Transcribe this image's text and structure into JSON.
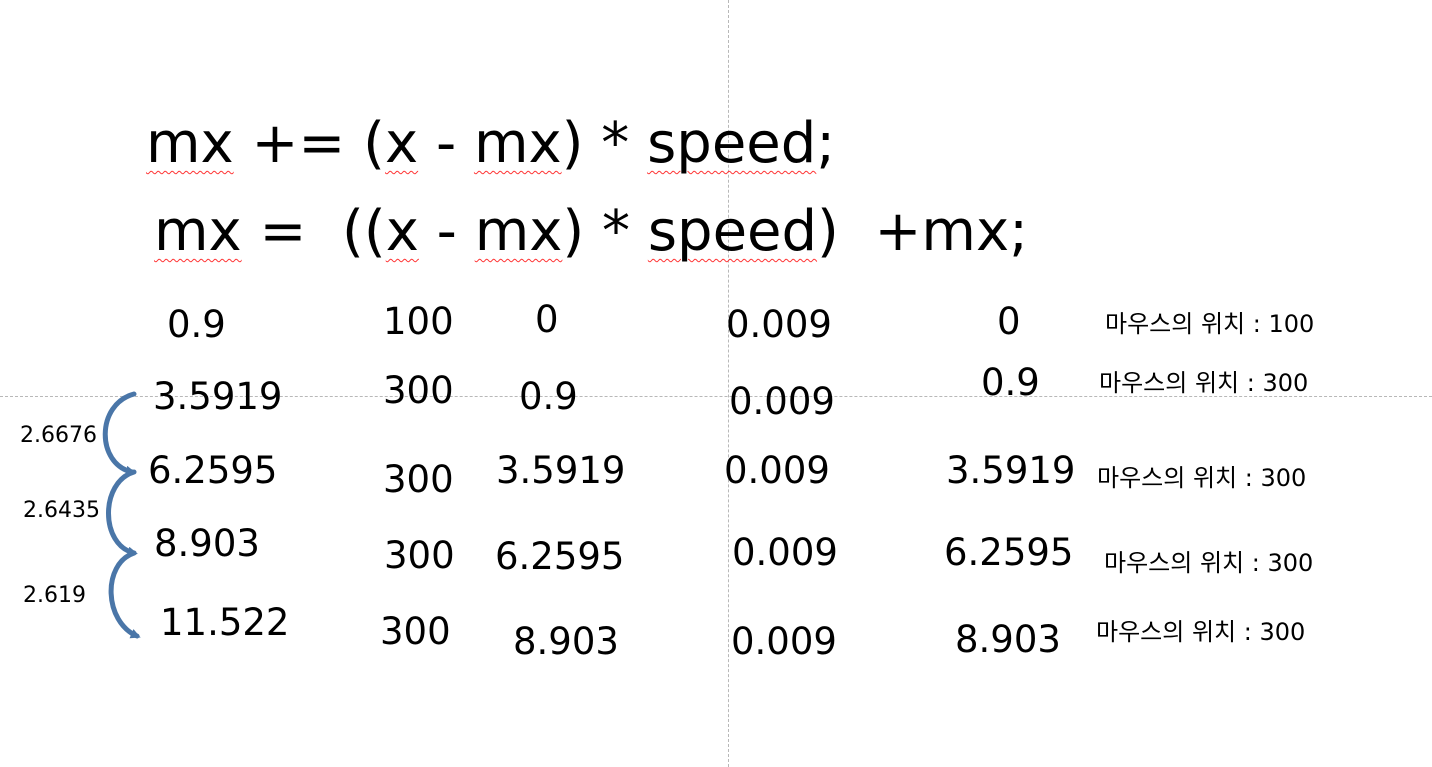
{
  "formulas": {
    "line1": {
      "mx": "mx",
      "op": " += (",
      "x": "x",
      "mid": " - ",
      "mx2": "mx",
      "close": ") * ",
      "speed": "speed",
      "end": ";"
    },
    "line2": {
      "mx": "mx",
      "op": " =  ((",
      "x": "x",
      "mid": " - ",
      "mx2": "mx",
      "close": ") * ",
      "speed": "speed",
      "end": ")  +mx;"
    }
  },
  "rows": [
    {
      "result": "0.9",
      "x": "100",
      "mx": "0",
      "product": "0.009",
      "prev_mx": "0",
      "mouse": "마우스의 위치 : 100"
    },
    {
      "result": "3.5919",
      "x": "300",
      "mx": "0.9",
      "product": "0.009",
      "prev_mx": "0.9",
      "mouse": "마우스의 위치 : 300"
    },
    {
      "result": "6.2595",
      "x": "300",
      "mx": "3.5919",
      "product": "0.009",
      "prev_mx": "3.5919",
      "mouse": "마우스의 위치 : 300"
    },
    {
      "result": "8.903",
      "x": "300",
      "mx": "6.2595",
      "product": "0.009",
      "prev_mx": "6.2595",
      "mouse": "마우스의 위치 : 300"
    },
    {
      "result": "11.522",
      "x": "300",
      "mx": "8.903",
      "product": "0.009",
      "prev_mx": "8.903",
      "mouse": "마우스의 위치 : 300"
    }
  ],
  "differences": [
    "2.6676",
    "2.6435",
    "2.619"
  ],
  "colors": {
    "arrow": "#4a76a8",
    "spell_underline": "#ff3333",
    "guide": "#b8b8b8"
  }
}
